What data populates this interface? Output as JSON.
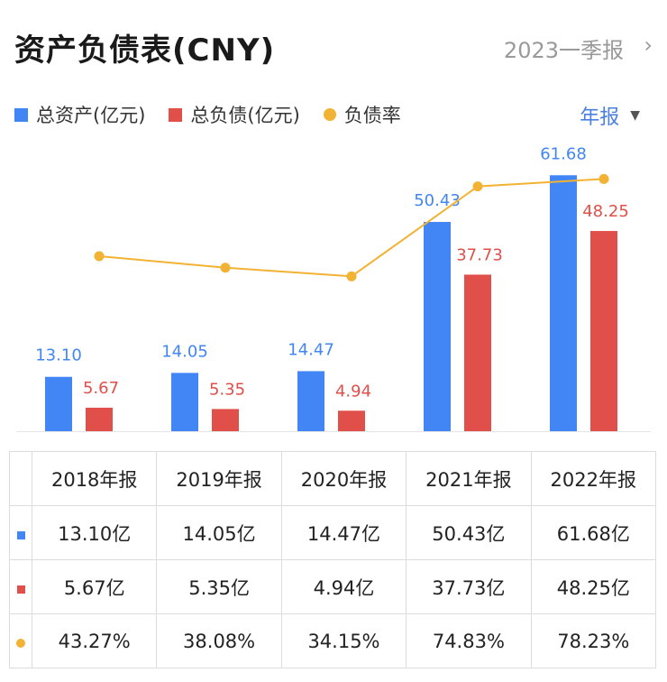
{
  "header": {
    "title": "资产负债表(CNY)",
    "period": "2023一季报",
    "chevron": "›"
  },
  "report_type": {
    "label": "年报",
    "arrow": "▼"
  },
  "colors": {
    "assets": "#4285F4",
    "liabilities": "#E04F4A",
    "ratio": "#F2B233",
    "accent": "#4A7FE0"
  },
  "chart_data": {
    "type": "bar",
    "title": "资产负债表(CNY)",
    "categories": [
      "2018年报",
      "2019年报",
      "2020年报",
      "2021年报",
      "2022年报"
    ],
    "series": [
      {
        "name": "总资产(亿元)",
        "kind": "bar",
        "values": [
          13.1,
          14.05,
          14.47,
          50.43,
          61.68
        ],
        "labels": [
          "13.10",
          "14.05",
          "14.47",
          "50.43",
          "61.68"
        ]
      },
      {
        "name": "总负债(亿元)",
        "kind": "bar",
        "values": [
          5.67,
          5.35,
          4.94,
          37.73,
          48.25
        ],
        "labels": [
          "5.67",
          "5.35",
          "4.94",
          "37.73",
          "48.25"
        ]
      },
      {
        "name": "负债率",
        "kind": "line",
        "values": [
          43.27,
          38.08,
          34.15,
          74.83,
          78.23
        ]
      }
    ],
    "legend_position": "top-left",
    "grid": false
  },
  "table": {
    "headers": [
      "2018年报",
      "2019年报",
      "2020年报",
      "2021年报",
      "2022年报"
    ],
    "rows": [
      {
        "marker": "sq-blue",
        "cells": [
          "13.10亿",
          "14.05亿",
          "14.47亿",
          "50.43亿",
          "61.68亿"
        ]
      },
      {
        "marker": "sq-red",
        "cells": [
          "5.67亿",
          "5.35亿",
          "4.94亿",
          "37.73亿",
          "48.25亿"
        ]
      },
      {
        "marker": "dot",
        "cells": [
          "43.27%",
          "38.08%",
          "34.15%",
          "74.83%",
          "78.23%"
        ]
      }
    ]
  }
}
